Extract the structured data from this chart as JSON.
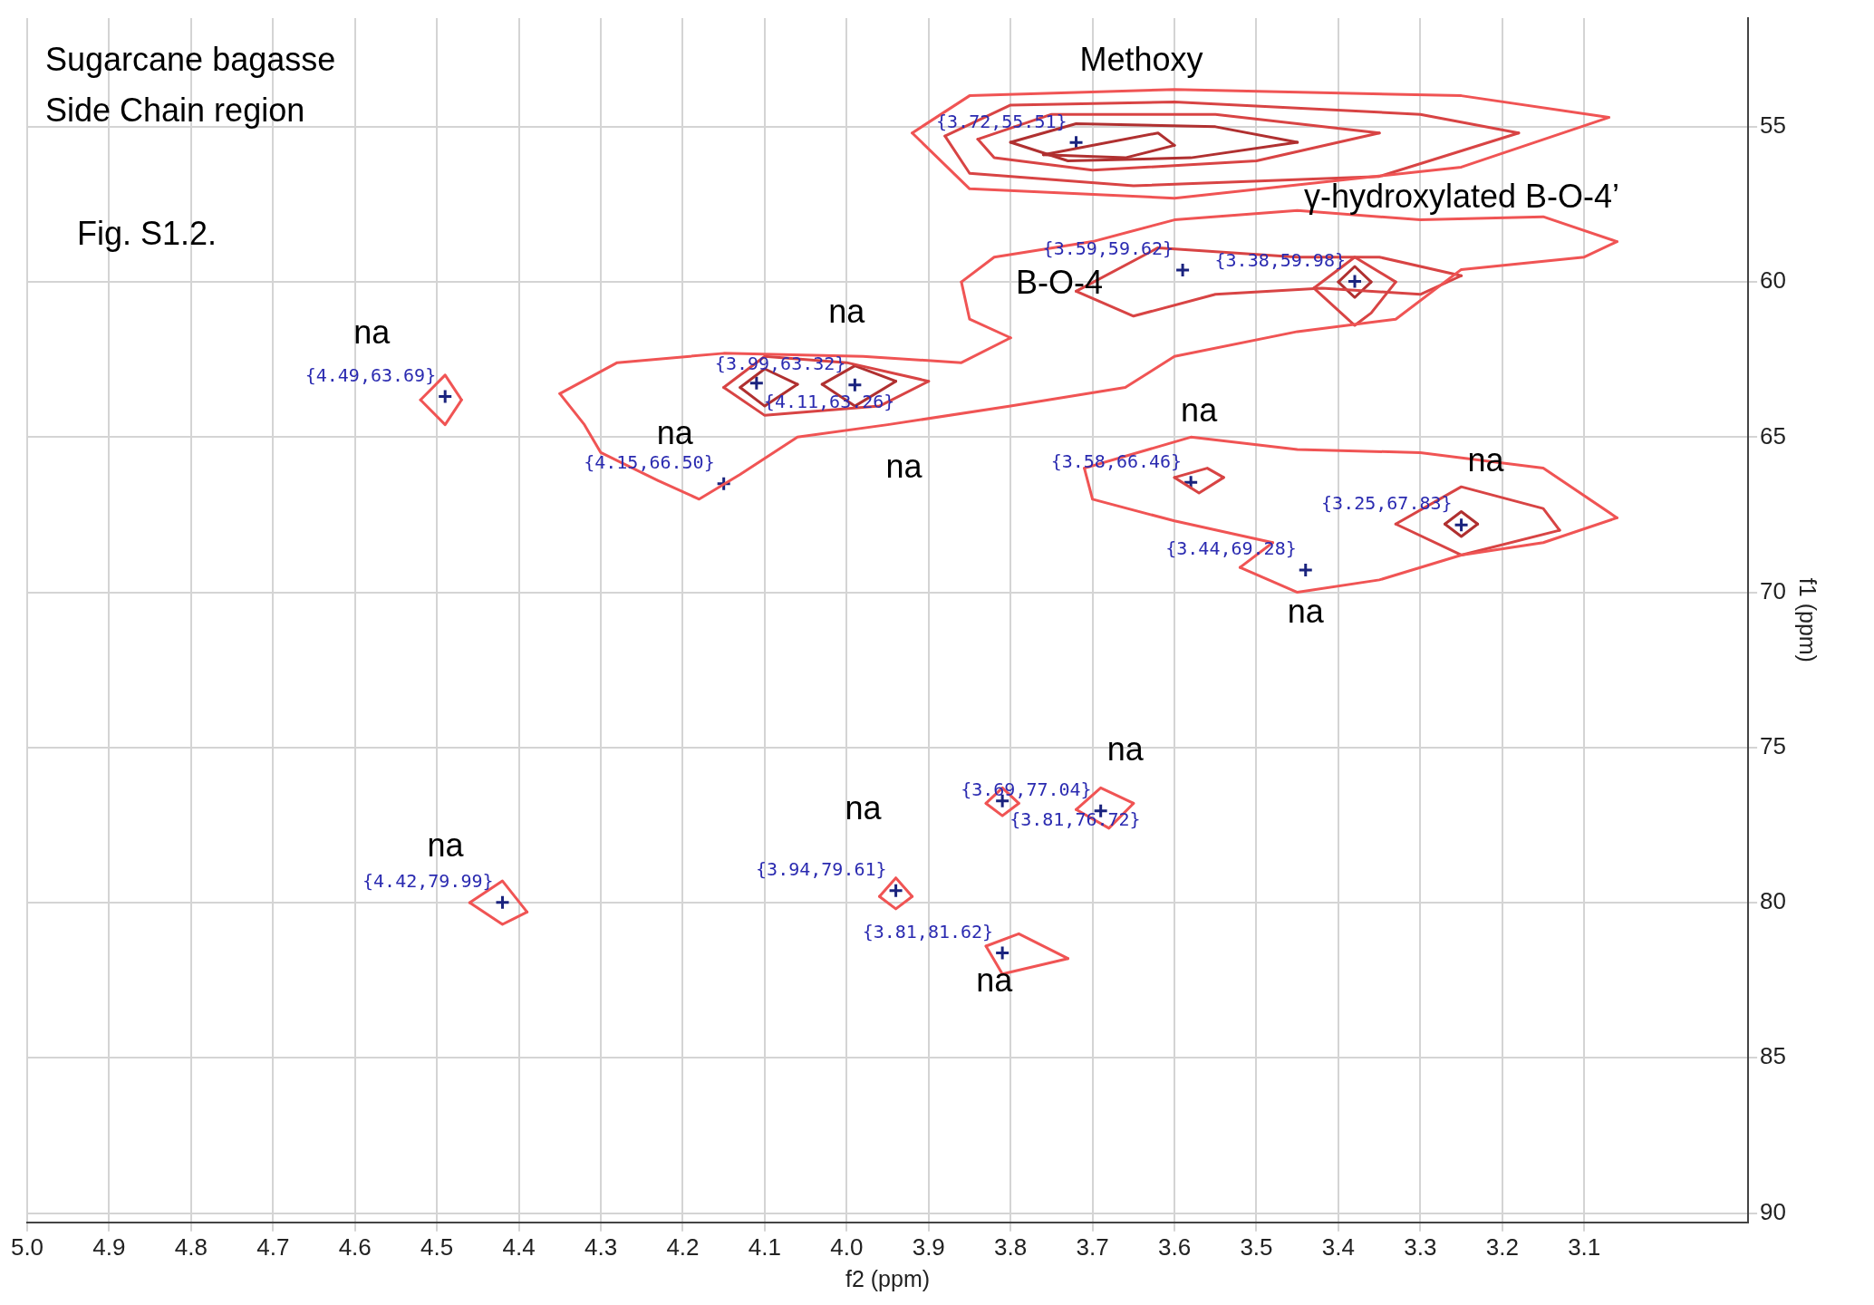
{
  "chart_data": {
    "type": "scatter",
    "xlabel": "f2 (ppm)",
    "ylabel": "f1 (ppm)",
    "xlim": [
      5.0,
      2.9
    ],
    "ylim": [
      90.3,
      51.5
    ],
    "xticks": [
      {
        "value": 5.0,
        "label": "5.0"
      },
      4.9,
      4.8,
      4.7,
      4.6,
      4.5,
      4.4,
      4.3,
      4.2,
      4.1,
      {
        "value": 4.0,
        "label": "4.0"
      },
      3.9,
      3.8,
      3.7,
      3.6,
      3.5,
      3.4,
      3.3,
      3.2,
      3.1
    ],
    "yticks": [
      55,
      60,
      65,
      70,
      75,
      80,
      85,
      90
    ],
    "grid": true,
    "legend": false,
    "annotations": [
      "Sugarcane bagasse",
      "Side Chain region",
      "Fig. S1.2.",
      {
        "text": "Methoxy",
        "x": 3.72,
        "y": 55.51
      },
      {
        "text": "γ-hydroxylated B-O-4’",
        "x": 3.38,
        "y": 59.98
      },
      {
        "text": "B-O-4",
        "x": 3.59,
        "y": 59.62
      },
      {
        "text": "na",
        "x": 4.49,
        "y": 63.69
      },
      {
        "text": "na",
        "x": 3.99,
        "y": 63.32
      },
      {
        "text": "na",
        "x": 4.15,
        "y": 66.5
      },
      {
        "text": "na",
        "x": 3.95,
        "y": 64.6
      },
      {
        "text": "na",
        "x": 3.58,
        "y": 66.46
      },
      {
        "text": "na",
        "x": 3.25,
        "y": 67.83
      },
      {
        "text": "na",
        "x": 3.44,
        "y": 69.28
      },
      {
        "text": "na",
        "x": 3.69,
        "y": 77.04
      },
      {
        "text": "na",
        "x": 3.94,
        "y": 79.61
      },
      {
        "text": "na",
        "x": 4.42,
        "y": 79.99
      },
      {
        "text": "na",
        "x": 3.81,
        "y": 81.62
      }
    ],
    "series": [
      {
        "type": "line",
        "color": "#f05454",
        "x": [
          3.07,
          3.25,
          3.6,
          3.85,
          3.92
        ],
        "values": [
          54.7,
          54.0,
          53.8,
          54.0,
          55.2
        ]
      },
      {
        "type": "line",
        "color": "#f05454",
        "x": [
          3.07,
          3.25,
          3.6,
          3.85,
          3.92
        ],
        "values": [
          54.7,
          56.3,
          57.3,
          57.0,
          55.2
        ]
      },
      {
        "type": "line",
        "color": "#d84444",
        "x": [
          3.18,
          3.3,
          3.6,
          3.8,
          3.88
        ],
        "values": [
          55.2,
          54.6,
          54.2,
          54.3,
          55.3
        ]
      },
      {
        "type": "line",
        "color": "#d84444",
        "x": [
          3.18,
          3.35,
          3.65,
          3.85,
          3.88
        ],
        "values": [
          55.2,
          56.6,
          56.9,
          56.5,
          55.3
        ]
      },
      {
        "type": "line",
        "color": "#d84444",
        "x": [
          3.35,
          3.55,
          3.75,
          3.84
        ],
        "values": [
          55.2,
          54.6,
          54.6,
          55.4
        ]
      },
      {
        "type": "line",
        "color": "#d84444",
        "x": [
          3.35,
          3.5,
          3.7,
          3.82,
          3.84
        ],
        "values": [
          55.2,
          56.1,
          56.4,
          56.0,
          55.4
        ]
      },
      {
        "type": "line",
        "color": "#b03030",
        "x": [
          3.45,
          3.55,
          3.72,
          3.8
        ],
        "values": [
          55.5,
          55.0,
          54.9,
          55.5
        ]
      },
      {
        "type": "line",
        "color": "#b03030",
        "x": [
          3.45,
          3.58,
          3.73,
          3.8
        ],
        "values": [
          55.5,
          56.0,
          56.1,
          55.5
        ]
      },
      {
        "type": "line",
        "color": "#b03030",
        "x": [
          3.6,
          3.62,
          3.76
        ],
        "values": [
          55.6,
          55.2,
          55.9
        ]
      },
      {
        "type": "line",
        "color": "#b03030",
        "x": [
          3.6,
          3.66,
          3.76
        ],
        "values": [
          55.6,
          56.0,
          55.9
        ]
      },
      {
        "type": "line",
        "color": "#f05454",
        "x": [
          3.8,
          3.86,
          3.98,
          4.15,
          4.28,
          4.35
        ],
        "values": [
          61.8,
          62.6,
          62.4,
          62.3,
          62.6,
          63.6
        ]
      },
      {
        "type": "line",
        "color": "#f05454",
        "x": [
          3.8,
          3.85,
          3.86
        ],
        "values": [
          61.8,
          61.2,
          60.0
        ]
      },
      {
        "type": "line",
        "color": "#f05454",
        "x": [
          3.06,
          3.15,
          3.3,
          3.45,
          3.6,
          3.7,
          3.82,
          3.86
        ],
        "values": [
          58.7,
          57.9,
          58.0,
          57.7,
          58.0,
          58.7,
          59.2,
          60.0
        ]
      },
      {
        "type": "line",
        "color": "#f05454",
        "x": [
          3.06,
          3.1,
          3.25,
          3.33,
          3.45,
          3.6,
          3.66,
          3.8,
          3.95,
          4.06,
          4.13,
          4.18,
          4.23,
          4.3,
          4.32,
          4.35
        ],
        "values": [
          58.7,
          59.2,
          59.6,
          61.2,
          61.6,
          62.4,
          63.4,
          64.0,
          64.6,
          65.0,
          66.2,
          67.0,
          66.4,
          65.5,
          64.6,
          63.6
        ]
      },
      {
        "type": "line",
        "color": "#d84444",
        "x": [
          3.25,
          3.35,
          3.45,
          3.62,
          3.72
        ],
        "values": [
          59.8,
          59.2,
          59.2,
          58.9,
          60.3
        ]
      },
      {
        "type": "line",
        "color": "#d84444",
        "x": [
          3.25,
          3.3,
          3.42,
          3.55,
          3.65,
          3.72
        ],
        "values": [
          59.8,
          60.4,
          60.2,
          60.4,
          61.1,
          60.3
        ]
      },
      {
        "type": "line",
        "color": "#d84444",
        "x": [
          3.33,
          3.38,
          3.43
        ],
        "values": [
          60.0,
          59.2,
          60.2
        ]
      },
      {
        "type": "line",
        "color": "#d84444",
        "x": [
          3.33,
          3.36,
          3.38,
          3.43
        ],
        "values": [
          60.0,
          61.0,
          61.4,
          60.2
        ]
      },
      {
        "type": "line",
        "color": "#b03030",
        "x": [
          3.36,
          3.38,
          3.4
        ],
        "values": [
          60.0,
          59.5,
          60.0
        ]
      },
      {
        "type": "line",
        "color": "#b03030",
        "x": [
          3.36,
          3.38,
          3.4
        ],
        "values": [
          60.0,
          60.5,
          60.0
        ]
      },
      {
        "type": "line",
        "color": "#d84444",
        "x": [
          3.9,
          4.0,
          4.1,
          4.15
        ],
        "values": [
          63.2,
          62.6,
          62.4,
          63.4
        ]
      },
      {
        "type": "line",
        "color": "#d84444",
        "x": [
          3.9,
          3.96,
          4.1,
          4.15
        ],
        "values": [
          63.2,
          64.0,
          64.3,
          63.4
        ]
      },
      {
        "type": "line",
        "color": "#b03030",
        "x": [
          4.06,
          4.1,
          4.13
        ],
        "values": [
          63.3,
          62.8,
          63.4
        ]
      },
      {
        "type": "line",
        "color": "#b03030",
        "x": [
          4.06,
          4.1,
          4.13
        ],
        "values": [
          63.3,
          64.0,
          63.4
        ]
      },
      {
        "type": "line",
        "color": "#b03030",
        "x": [
          3.94,
          3.99,
          4.03
        ],
        "values": [
          63.2,
          62.7,
          63.3
        ]
      },
      {
        "type": "line",
        "color": "#b03030",
        "x": [
          3.94,
          3.99,
          4.03
        ],
        "values": [
          63.2,
          64.0,
          63.3
        ]
      },
      {
        "type": "line",
        "color": "#f05454",
        "x": [
          4.47,
          4.49,
          4.52
        ],
        "values": [
          63.8,
          63.0,
          63.8
        ]
      },
      {
        "type": "line",
        "color": "#f05454",
        "x": [
          4.47,
          4.49,
          4.52
        ],
        "values": [
          63.8,
          64.6,
          63.8
        ]
      },
      {
        "type": "line",
        "color": "#f05454",
        "x": [
          3.06,
          3.15,
          3.3,
          3.45,
          3.58,
          3.71
        ],
        "values": [
          67.6,
          66.0,
          65.5,
          65.4,
          65.0,
          66.0
        ]
      },
      {
        "type": "line",
        "color": "#f05454",
        "x": [
          3.06,
          3.15,
          3.25,
          3.35,
          3.45,
          3.52
        ],
        "values": [
          67.6,
          68.4,
          68.8,
          69.6,
          70.0,
          69.2
        ]
      },
      {
        "type": "line",
        "color": "#f05454",
        "x": [
          3.48,
          3.52
        ],
        "values": [
          68.4,
          69.2
        ]
      },
      {
        "type": "line",
        "color": "#f05454",
        "x": [
          3.48,
          3.6,
          3.7,
          3.71
        ],
        "values": [
          68.4,
          67.7,
          67.0,
          66.0
        ]
      },
      {
        "type": "line",
        "color": "#d84444",
        "x": [
          3.13,
          3.15,
          3.25,
          3.33
        ],
        "values": [
          68.0,
          67.3,
          66.6,
          67.8
        ]
      },
      {
        "type": "line",
        "color": "#d84444",
        "x": [
          3.13,
          3.25,
          3.33
        ],
        "values": [
          68.0,
          68.8,
          67.8
        ]
      },
      {
        "type": "line",
        "color": "#b03030",
        "x": [
          3.23,
          3.25,
          3.27
        ],
        "values": [
          67.8,
          67.4,
          67.8
        ]
      },
      {
        "type": "line",
        "color": "#b03030",
        "x": [
          3.23,
          3.25,
          3.27
        ],
        "values": [
          67.8,
          68.2,
          67.8
        ]
      },
      {
        "type": "line",
        "color": "#d84444",
        "x": [
          3.54,
          3.56,
          3.6
        ],
        "values": [
          66.3,
          66.0,
          66.3
        ]
      },
      {
        "type": "line",
        "color": "#d84444",
        "x": [
          3.54,
          3.57,
          3.6
        ],
        "values": [
          66.3,
          66.8,
          66.3
        ]
      },
      {
        "type": "line",
        "color": "#f05454",
        "x": [
          3.65,
          3.69,
          3.72
        ],
        "values": [
          76.8,
          76.3,
          77.0
        ]
      },
      {
        "type": "line",
        "color": "#f05454",
        "x": [
          3.65,
          3.68,
          3.72
        ],
        "values": [
          76.8,
          77.6,
          77.0
        ]
      },
      {
        "type": "line",
        "color": "#f05454",
        "x": [
          3.79,
          3.81,
          3.83
        ],
        "values": [
          76.8,
          76.3,
          76.8
        ]
      },
      {
        "type": "line",
        "color": "#f05454",
        "x": [
          3.79,
          3.81,
          3.83
        ],
        "values": [
          76.8,
          77.2,
          76.8
        ]
      },
      {
        "type": "line",
        "color": "#f05454",
        "x": [
          3.92,
          3.94,
          3.96
        ],
        "values": [
          79.8,
          79.2,
          79.8
        ]
      },
      {
        "type": "line",
        "color": "#f05454",
        "x": [
          3.92,
          3.94,
          3.96
        ],
        "values": [
          79.8,
          80.2,
          79.8
        ]
      },
      {
        "type": "line",
        "color": "#f05454",
        "x": [
          3.73,
          3.79,
          3.83
        ],
        "values": [
          81.8,
          81.0,
          81.4
        ]
      },
      {
        "type": "line",
        "color": "#f05454",
        "x": [
          3.73,
          3.81,
          3.83
        ],
        "values": [
          81.8,
          82.3,
          81.4
        ]
      },
      {
        "type": "line",
        "color": "#f05454",
        "x": [
          4.39,
          4.42,
          4.46
        ],
        "values": [
          80.3,
          79.3,
          80.0
        ]
      },
      {
        "type": "line",
        "color": "#f05454",
        "x": [
          4.39,
          4.42,
          4.46
        ],
        "values": [
          80.3,
          80.7,
          80.0
        ]
      },
      {
        "type": "scatter",
        "marker": "cross",
        "color": "#1a237e",
        "x": [
          3.72,
          3.59,
          3.38,
          4.49,
          3.99,
          4.11,
          4.15,
          3.58,
          3.25,
          3.44,
          3.69,
          3.81,
          4.42,
          3.94,
          3.81
        ],
        "values": [
          55.51,
          59.62,
          59.98,
          63.69,
          63.32,
          63.26,
          66.5,
          66.46,
          67.83,
          69.28,
          77.04,
          76.72,
          79.99,
          79.61,
          81.62
        ],
        "value_labels": [
          "{3.72,55.51}",
          "{3.59,59.62}",
          "{3.38,59.98}",
          "{4.49,63.69}",
          "{3.99,63.32}",
          "{4.11,63.26}",
          "{4.15,66.50}",
          "{3.58,66.46}",
          "{3.25,67.83}",
          "{3.44,69.28}",
          "{3.69,77.04}",
          "{3.81,76.72}",
          "{4.42,79.99}",
          "{3.94,79.61}",
          "{3.81,81.62}"
        ]
      }
    ]
  }
}
